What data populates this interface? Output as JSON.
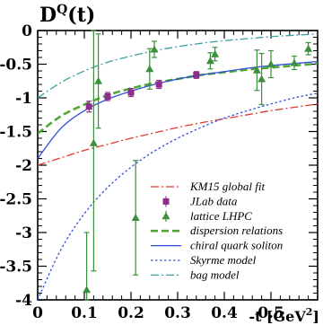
{
  "chart_data": {
    "type": "line",
    "title": "D^Q(t)",
    "title_main": "D",
    "title_sup": "Q",
    "title_arg": "(t)",
    "xlabel_prefix": "-t [GeV",
    "xlabel_sup": "2",
    "xlabel_suffix": "]",
    "xlim": [
      0,
      0.6
    ],
    "ylim": [
      -4,
      0
    ],
    "x_ticks": [
      0,
      0.1,
      0.2,
      0.3,
      0.4,
      0.5
    ],
    "x_tick_labels": [
      "0",
      "0.1",
      "0.2",
      "0.3",
      "0.4",
      "0.5"
    ],
    "y_ticks": [
      0,
      -0.5,
      -1,
      -1.5,
      -2,
      -2.5,
      -3,
      -3.5,
      -4
    ],
    "y_tick_labels": [
      "0",
      "-0.5",
      "-1",
      "-1.5",
      "-2",
      "-2.5",
      "-3",
      "-3.5",
      "-4"
    ],
    "legend_position": "bottom-right",
    "series": [
      {
        "name": "KM15 global fit",
        "style": "dashdot",
        "color": "#e03c31",
        "x": [
          0,
          0.05,
          0.1,
          0.15,
          0.2,
          0.25,
          0.3,
          0.35,
          0.4,
          0.45,
          0.5,
          0.55,
          0.6
        ],
        "y": [
          -2.0,
          -1.89,
          -1.78,
          -1.69,
          -1.6,
          -1.52,
          -1.44,
          -1.37,
          -1.31,
          -1.25,
          -1.19,
          -1.14,
          -1.09
        ]
      },
      {
        "name": "dispersion relations",
        "style": "dashed-thick",
        "color": "#4fa832",
        "x": [
          0,
          0.05,
          0.1,
          0.15,
          0.2,
          0.25,
          0.3,
          0.35,
          0.4,
          0.45,
          0.5,
          0.55,
          0.6
        ],
        "y": [
          -1.53,
          -1.27,
          -1.1,
          -0.96,
          -0.86,
          -0.78,
          -0.72,
          -0.66,
          -0.62,
          -0.58,
          -0.55,
          -0.52,
          -0.49
        ]
      },
      {
        "name": "chiral quark soliton",
        "style": "solid",
        "color": "#3050d8",
        "x": [
          0,
          0.05,
          0.1,
          0.15,
          0.2,
          0.25,
          0.3,
          0.35,
          0.4,
          0.45,
          0.5,
          0.55,
          0.6
        ],
        "y": [
          -1.9,
          -1.45,
          -1.19,
          -1.02,
          -0.9,
          -0.8,
          -0.72,
          -0.66,
          -0.61,
          -0.56,
          -0.52,
          -0.49,
          -0.46
        ]
      },
      {
        "name": "Skyrme model",
        "style": "dotted",
        "color": "#3050d8",
        "x": [
          0,
          0.05,
          0.1,
          0.15,
          0.2,
          0.25,
          0.3,
          0.35,
          0.4,
          0.45,
          0.5,
          0.55,
          0.6
        ],
        "y": [
          -4.0,
          -3.25,
          -2.72,
          -2.33,
          -2.03,
          -1.79,
          -1.6,
          -1.44,
          -1.3,
          -1.19,
          -1.09,
          -1.0,
          -0.93
        ]
      },
      {
        "name": "bag model",
        "style": "dashdot",
        "color": "#3ea0a0",
        "x": [
          0,
          0.05,
          0.1,
          0.15,
          0.2,
          0.25,
          0.3,
          0.35,
          0.4,
          0.45,
          0.5,
          0.55,
          0.6
        ],
        "y": [
          -1.0,
          -0.77,
          -0.6,
          -0.47,
          -0.38,
          -0.3,
          -0.24,
          -0.19,
          -0.15,
          -0.12,
          -0.09,
          -0.07,
          -0.05
        ]
      }
    ],
    "points": [
      {
        "name": "JLab data",
        "marker": "square",
        "color": "#8e2d8e",
        "x": [
          0.11,
          0.15,
          0.2,
          0.26,
          0.34
        ],
        "y": [
          -1.13,
          -0.98,
          -0.92,
          -0.8,
          -0.66
        ],
        "err": [
          0.08,
          0.06,
          0.06,
          0.06,
          0.05
        ]
      },
      {
        "name": "lattice LHPC",
        "marker": "triangle",
        "color": "#3d8f3d",
        "x": [
          0.105,
          0.12,
          0.13,
          0.21,
          0.24,
          0.25,
          0.37,
          0.38,
          0.47,
          0.48,
          0.5,
          0.55,
          0.58
        ],
        "y": [
          -3.85,
          -1.67,
          -0.75,
          -2.78,
          -0.57,
          -0.28,
          -0.45,
          -0.35,
          -0.59,
          -0.72,
          -0.5,
          -0.48,
          -0.27
        ],
        "err": [
          0.85,
          1.9,
          0.7,
          0.85,
          0.3,
          0.12,
          0.12,
          0.1,
          0.3,
          0.38,
          0.2,
          0.1,
          0.09
        ]
      }
    ]
  }
}
